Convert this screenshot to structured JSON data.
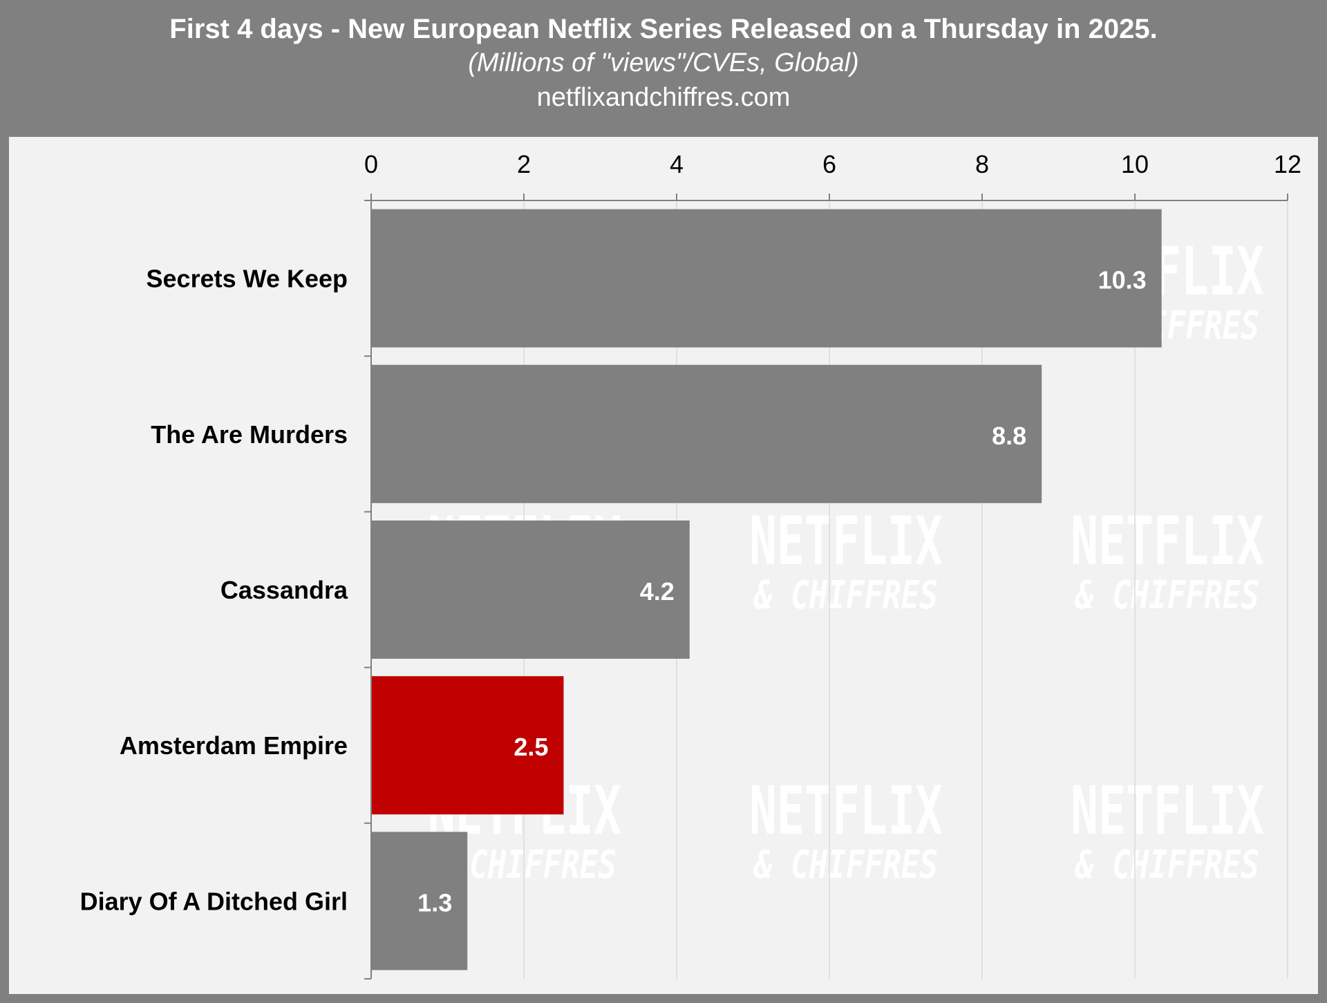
{
  "header": {
    "title": "First 4 days - New European Netflix Series Released on a Thursday in 2025.",
    "subtitle": "(Millions of \"views\"/CVEs, Global)",
    "source": "netflixandchiffres.com"
  },
  "watermark": {
    "line1": "NETFLIX",
    "line2": "& CHIFFRES"
  },
  "colors": {
    "header_bg": "#808080",
    "panel_bg": "#f2f2f2",
    "bar_default": "#808080",
    "bar_highlight": "#c00000",
    "gridline": "#d9d9d9",
    "axis": "#808080",
    "label_text": "#000000",
    "value_text": "#ffffff"
  },
  "chart_data": {
    "type": "bar",
    "orientation": "horizontal",
    "xlim": [
      0,
      12
    ],
    "ticks": [
      0,
      2,
      4,
      6,
      8,
      10,
      12
    ],
    "tick_labels": [
      "0",
      "2",
      "4",
      "6",
      "8",
      "10",
      "12"
    ],
    "x_axis_position": "top",
    "grid": true,
    "categories": [
      "Secrets We Keep",
      "The Are Murders",
      "Cassandra",
      "Amsterdam Empire",
      "Diary Of A Ditched Girl"
    ],
    "values": [
      10.35,
      8.78,
      4.17,
      2.52,
      1.26
    ],
    "value_labels": [
      "10.3",
      "8.8",
      "4.2",
      "2.5",
      "1.3"
    ],
    "highlight": "Amsterdam Empire"
  }
}
